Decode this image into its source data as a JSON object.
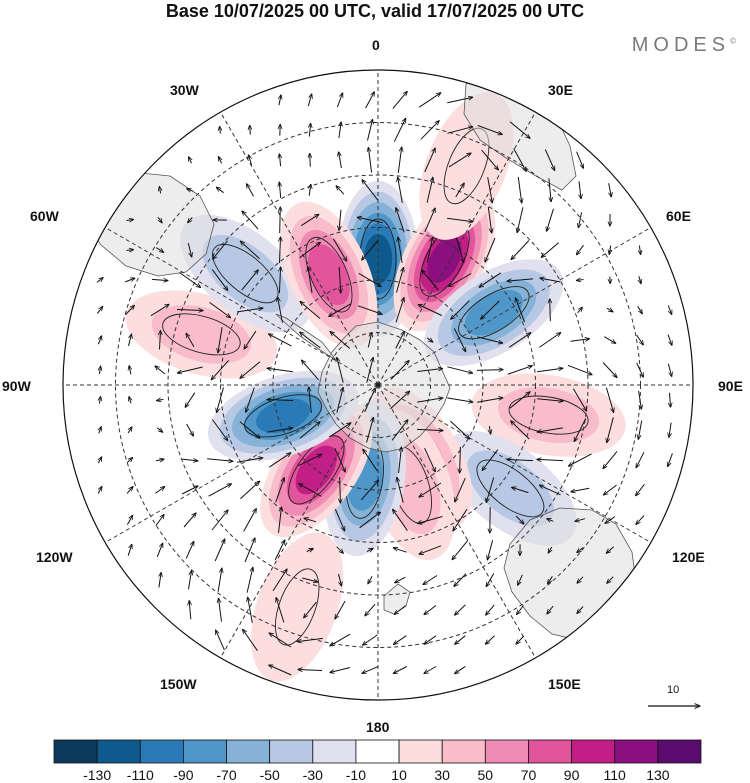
{
  "title": "Base 10/07/2025 00 UTC, valid 17/07/2025 00 UTC",
  "brand": "MODES",
  "brand_mark": "©",
  "longitude_labels": {
    "lon_0": "0",
    "lon_30e": "30E",
    "lon_60e": "60E",
    "lon_90e": "90E",
    "lon_120e": "120E",
    "lon_150e": "150E",
    "lon_180": "180",
    "lon_150w": "150W",
    "lon_120w": "120W",
    "lon_90w": "90W",
    "lon_60w": "60W",
    "lon_30w": "30W"
  },
  "reference_vector_label": "10",
  "colorbar": {
    "colors": [
      "#0b3a5c",
      "#0f5a8c",
      "#2a7ab8",
      "#4f97c8",
      "#86b2d8",
      "#b7c8e4",
      "#e0e0ef",
      "#ffffff",
      "#fcdede",
      "#f8bccb",
      "#f08cb4",
      "#e2559c",
      "#c21f86",
      "#8c0f80",
      "#5a0c6e"
    ],
    "labels": [
      "-130",
      "-110",
      "-90",
      "-70",
      "-50",
      "-30",
      "-10",
      "10",
      "30",
      "50",
      "70",
      "90",
      "110",
      "130"
    ]
  },
  "anomaly_centers": [
    {
      "lon": 0,
      "colat": 24,
      "value": -120
    },
    {
      "lon": 28,
      "colat": 27,
      "value": 115
    },
    {
      "lon": 58,
      "colat": 26,
      "value": -70
    },
    {
      "lon": 100,
      "colat": 33,
      "value": 40
    },
    {
      "lon": 128,
      "colat": 32,
      "value": -30
    },
    {
      "lon": 150,
      "colat": 16,
      "value": 50
    },
    {
      "lon": 162,
      "colat": 20,
      "value": 40
    },
    {
      "lon": 188,
      "colat": 18,
      "value": -85
    },
    {
      "lon": 216,
      "colat": 20,
      "value": 95
    },
    {
      "lon": 252,
      "colat": 19,
      "value": -95
    },
    {
      "lon": 286,
      "colat": 35,
      "value": 35
    },
    {
      "lon": 310,
      "colat": 33,
      "value": -45
    },
    {
      "lon": 336,
      "colat": 23,
      "value": 85
    },
    {
      "lon": 22,
      "colat": 45,
      "value": 25
    },
    {
      "lon": 200,
      "colat": 45,
      "value": 25
    }
  ]
}
